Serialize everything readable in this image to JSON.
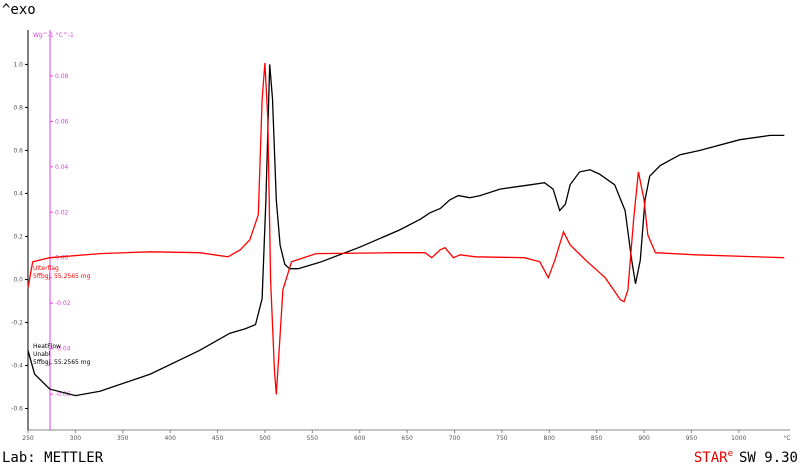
{
  "header": {
    "exo_label": "^exo"
  },
  "chart_data": {
    "type": "line",
    "y_label": "Wg^-1 °C^-1",
    "x_unit": "°C",
    "xlim": [
      250,
      1054
    ],
    "xticks": [
      250,
      300,
      350,
      400,
      450,
      500,
      550,
      600,
      650,
      700,
      750,
      800,
      850,
      900,
      950,
      1000
    ],
    "ylim": [
      -0.7,
      1.16
    ],
    "yticks": [
      -0.6,
      -0.4,
      -0.2,
      {
        "value": 0,
        "label": "0.0"
      },
      0.2,
      0.4,
      0.6,
      0.8,
      {
        "value": 1,
        "label": "1.0"
      }
    ],
    "y2lim": [
      -0.0758,
      0.1002
    ],
    "y2ticks": [
      -0.06,
      -0.04,
      -0.02,
      {
        "value": 0,
        "label": "0.00"
      },
      0.02,
      0.04,
      0.06,
      0.08
    ],
    "y_axis_color": "#000000",
    "y2_axis_color": "#e040e0",
    "series": [
      {
        "name": "HeatFlow",
        "legend_lines": [
          "Unabl",
          "5ffbgj, 55.2565 mg"
        ],
        "color": "#000000",
        "axis": "y",
        "x": [
          250,
          257,
          273,
          300,
          326,
          379,
          431,
          463,
          479,
          490,
          497,
          501,
          505,
          508,
          512,
          516,
          521,
          526,
          535,
          558,
          600,
          642,
          664,
          674,
          685,
          695,
          704,
          716,
          727,
          748,
          780,
          795,
          804,
          811,
          817,
          822,
          832,
          843,
          853,
          869,
          880,
          887,
          891,
          896,
          901,
          906,
          917,
          938,
          959,
          1001,
          1033,
          1048
        ],
        "values": [
          -0.33,
          -0.44,
          -0.51,
          -0.54,
          -0.52,
          -0.44,
          -0.33,
          -0.25,
          -0.23,
          -0.21,
          -0.09,
          0.37,
          1.0,
          0.84,
          0.37,
          0.16,
          0.07,
          0.05,
          0.05,
          0.08,
          0.15,
          0.23,
          0.28,
          0.31,
          0.33,
          0.37,
          0.39,
          0.38,
          0.39,
          0.42,
          0.44,
          0.45,
          0.42,
          0.32,
          0.35,
          0.44,
          0.5,
          0.51,
          0.49,
          0.44,
          0.32,
          0.09,
          -0.02,
          0.09,
          0.37,
          0.48,
          0.53,
          0.58,
          0.6,
          0.65,
          0.67,
          0.67
        ]
      },
      {
        "name": "Ulterflag",
        "legend_lines": [
          "5ffbgj, 55.2565 mg"
        ],
        "color": "#ff0000",
        "axis": "y2",
        "x": [
          250,
          255,
          273,
          326,
          379,
          431,
          461,
          474,
          484,
          493,
          497,
          500,
          503,
          506,
          510,
          512,
          515,
          519,
          528,
          554,
          638,
          669,
          676,
          685,
          690,
          699,
          706,
          722,
          774,
          790,
          799,
          806,
          815,
          822,
          838,
          859,
          875,
          879,
          883,
          889,
          894,
          900,
          904,
          912,
          954,
          1048
        ],
        "values": [
          -0.0132,
          -0.0018,
          0.0,
          0.0018,
          0.0026,
          0.0022,
          0.0004,
          0.0035,
          0.0079,
          0.0189,
          0.0694,
          0.0857,
          0.0611,
          -0.0097,
          -0.0492,
          -0.0602,
          -0.0404,
          -0.0141,
          -0.0018,
          0.0018,
          0.0022,
          0.0022,
          0.0,
          0.0035,
          0.0044,
          0.0,
          0.0013,
          0.0004,
          0.0,
          -0.0018,
          -0.0088,
          -0.0009,
          0.0114,
          0.0057,
          -0.0009,
          -0.0088,
          -0.0185,
          -0.0193,
          -0.0141,
          0.0167,
          0.0378,
          0.0255,
          0.0101,
          0.0022,
          0.0013,
          0.0
        ]
      }
    ]
  },
  "footer": {
    "lab": "Lab: METTLER",
    "brand": "STAR",
    "brand_mark": "e",
    "version": "SW 9.30"
  }
}
